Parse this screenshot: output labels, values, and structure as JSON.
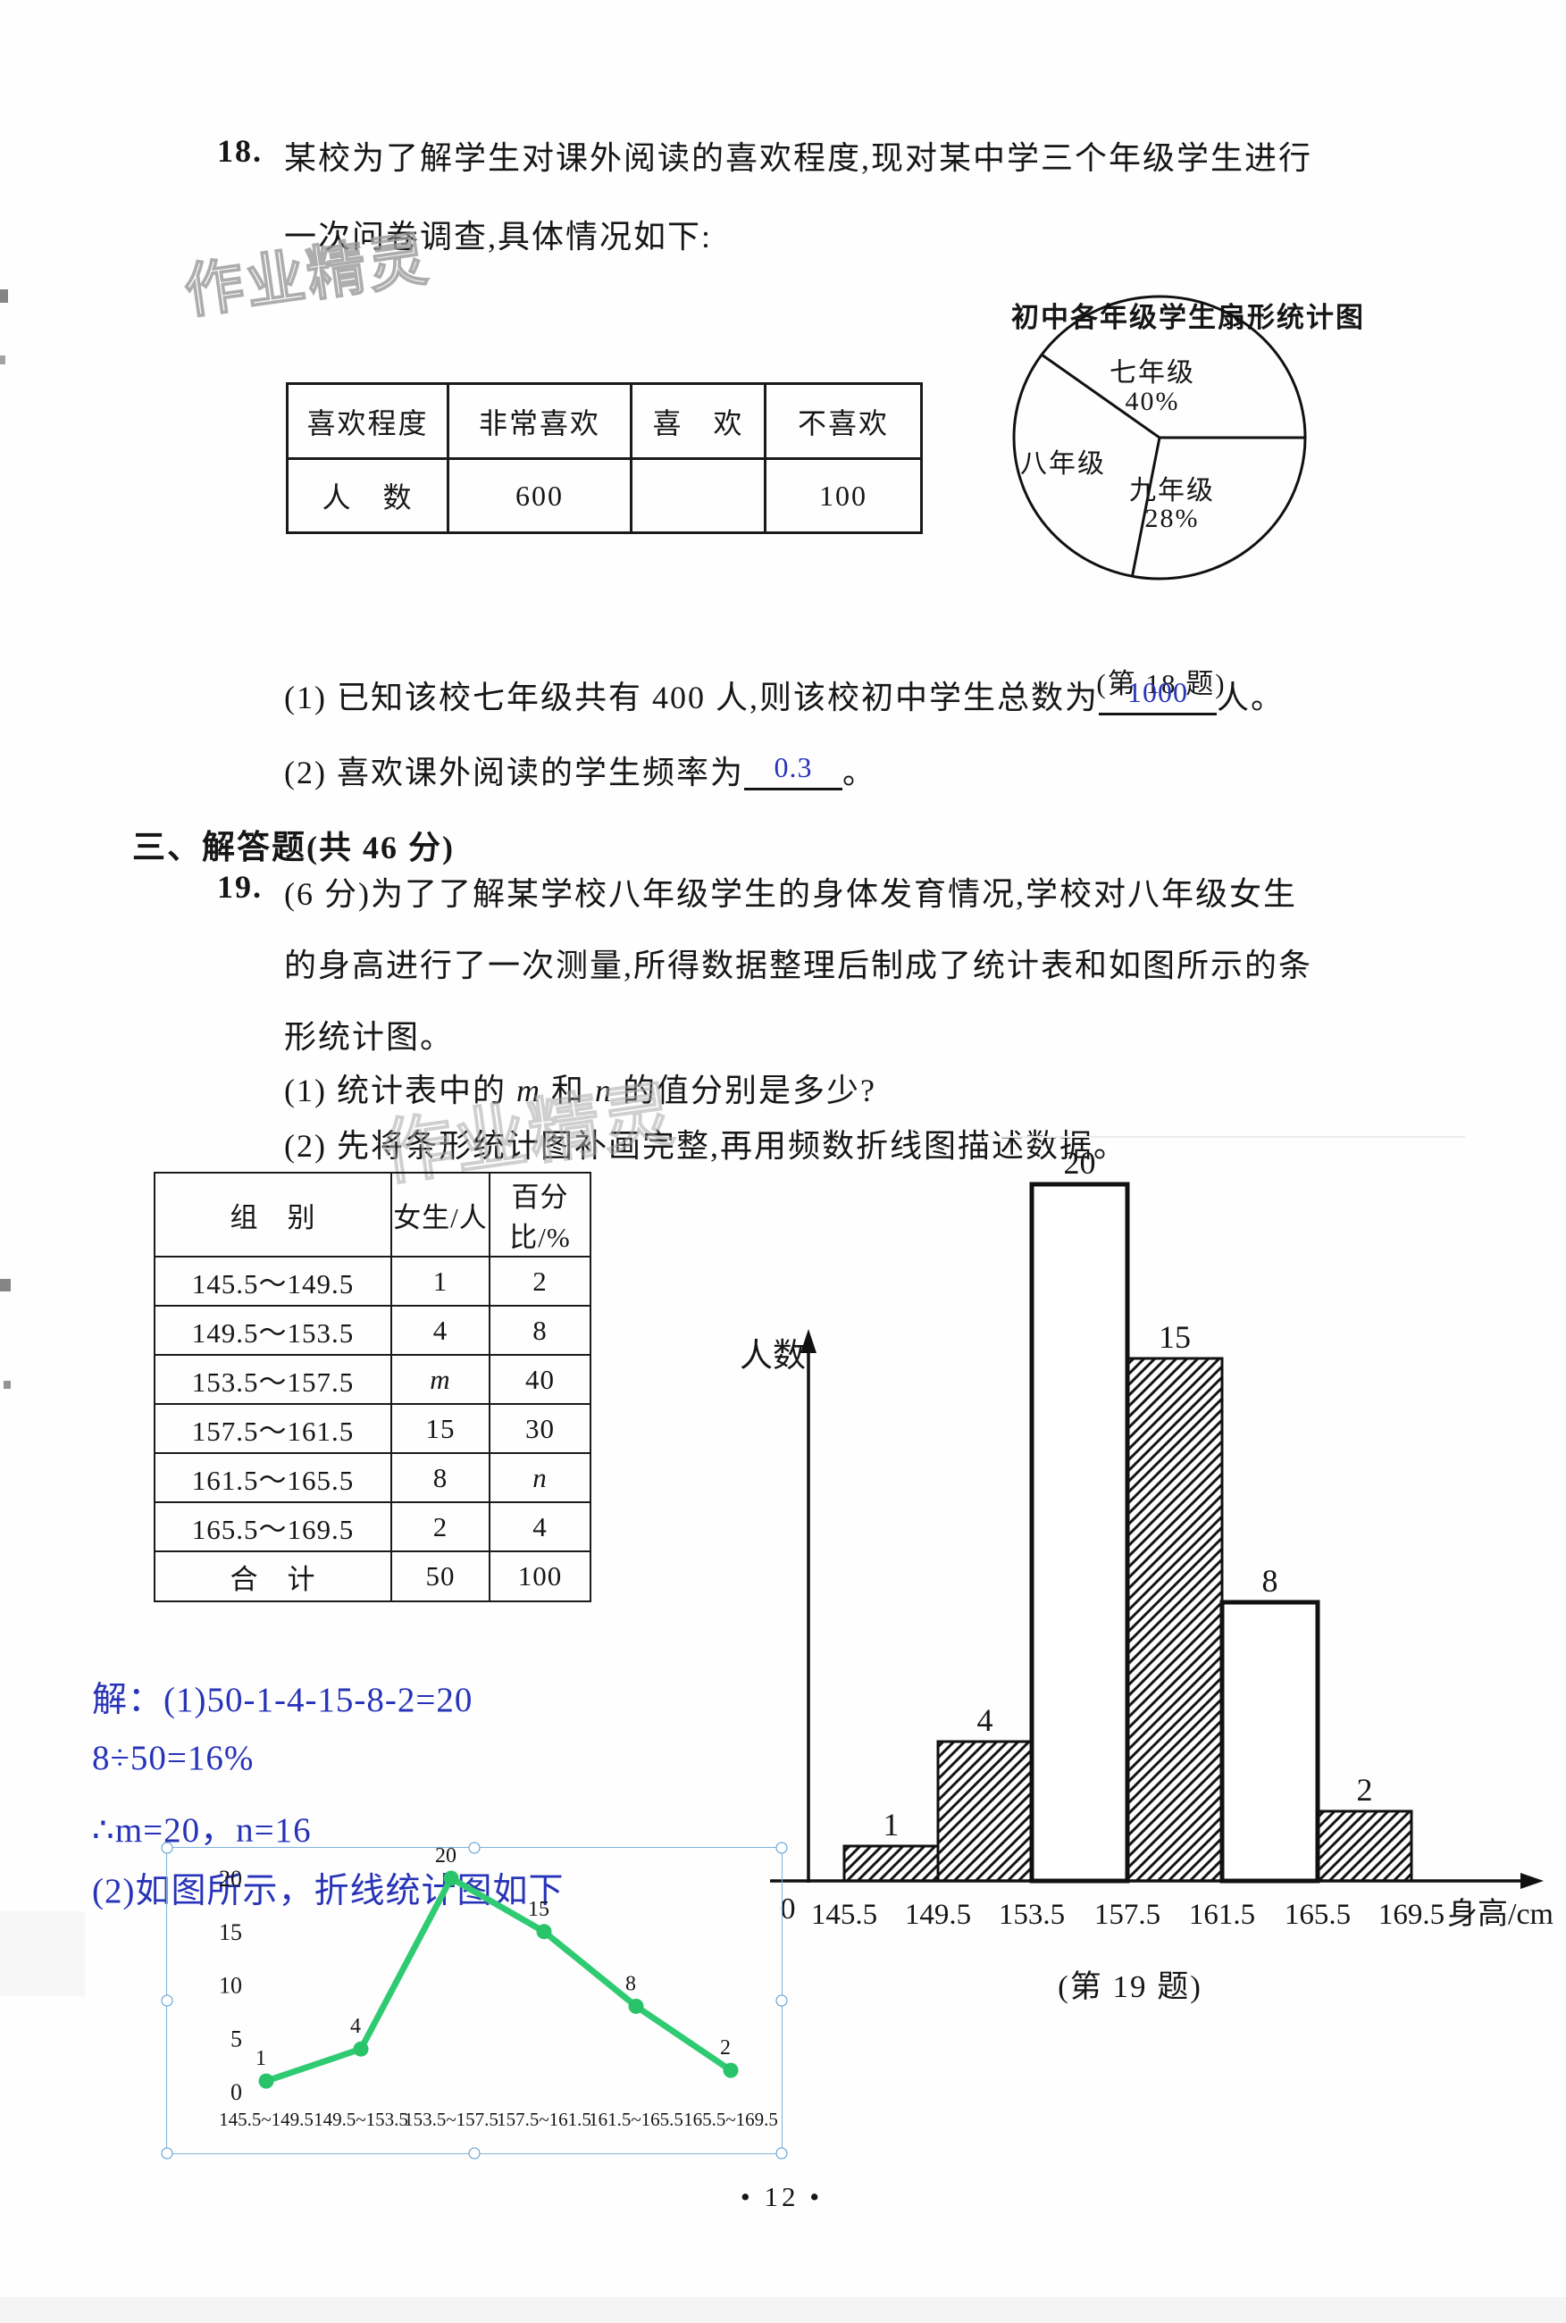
{
  "page": {
    "number_text": "• 12 •"
  },
  "watermark": {
    "text": "作业精灵"
  },
  "q18": {
    "number": "18.",
    "line1": "某校为了解学生对课外阅读的喜欢程度,现对某中学三个年级学生进行",
    "line2": "一次问卷调查,具体情况如下:",
    "table": {
      "headers": [
        "喜欢程度",
        "非常喜欢",
        "喜　欢",
        "不喜欢"
      ],
      "row_label": "人　数",
      "values": [
        "600",
        "",
        "100"
      ]
    },
    "part1_prefix": "(1) 已知该校七年级共有 400 人,则该校初中学生总数为",
    "part1_answer": "1000",
    "part1_suffix": "人。",
    "part2_prefix": "(2) 喜欢课外阅读的学生频率为",
    "part2_answer": "0.3",
    "part2_suffix": "。"
  },
  "section3": {
    "bold_part": "三、解答题",
    "rest_part": "(共 46 分)"
  },
  "q19": {
    "number": "19.",
    "line1": "(6 分)为了了解某学校八年级学生的身体发育情况,学校对八年级女生",
    "line2": "的身高进行了一次测量,所得数据整理后制成了统计表和如图所示的条",
    "line3": "形统计图。",
    "part1_segments": [
      "(1) 统计表中的 ",
      "m",
      " 和 ",
      "n",
      " 的值分别是多少?"
    ],
    "part2": "(2) 先将条形统计图补画完整,再用频数折线图描述数据。",
    "table": {
      "headers": [
        "组　别",
        "女生/人",
        "百分比/%"
      ],
      "rows": [
        [
          "145.5～149.5",
          "1",
          "2"
        ],
        [
          "149.5～153.5",
          "4",
          "8"
        ],
        [
          "153.5～157.5",
          "m",
          "40"
        ],
        [
          "157.5～161.5",
          "15",
          "30"
        ],
        [
          "161.5～165.5",
          "8",
          "n"
        ],
        [
          "165.5～169.5",
          "2",
          "4"
        ],
        [
          "合　计",
          "50",
          "100"
        ]
      ]
    }
  },
  "solution": {
    "line1": "解：(1)50-1-4-15-8-2=20",
    "line2": "8÷50=16%",
    "line3": "∴m=20，n=16",
    "line4": "(2)如图所示，折线统计图如下"
  },
  "chart_data": [
    {
      "type": "pie",
      "title": "初中各年级学生扇形统计图",
      "caption": "(第 18 题)",
      "slices": [
        {
          "label": "七年级",
          "value_label": "40%",
          "percent": 40
        },
        {
          "label": "八年级",
          "value_label": "",
          "percent": 32
        },
        {
          "label": "九年级",
          "value_label": "28%",
          "percent": 28
        }
      ]
    },
    {
      "type": "bar",
      "title": "",
      "ylabel": "人数",
      "xlabel": "身高/cm",
      "origin_label": "0",
      "caption": "(第 19 题)",
      "boundaries": [
        "145.5",
        "149.5",
        "153.5",
        "157.5",
        "161.5",
        "165.5",
        "169.5"
      ],
      "values": [
        1,
        4,
        20,
        15,
        8,
        2
      ],
      "filled_hatch": [
        true,
        true,
        false,
        true,
        false,
        true
      ],
      "ylim": [
        0,
        20
      ]
    },
    {
      "type": "line",
      "categories": [
        "145.5~149.5",
        "149.5~153.5",
        "153.5~157.5",
        "157.5~161.5",
        "161.5~165.5",
        "165.5~169.5"
      ],
      "values": [
        1,
        4,
        20,
        15,
        8,
        2
      ],
      "yticks": [
        0,
        5,
        10,
        15,
        20
      ],
      "line_color": "#2fcb72",
      "point_color": "#29c469",
      "legend": ""
    }
  ]
}
